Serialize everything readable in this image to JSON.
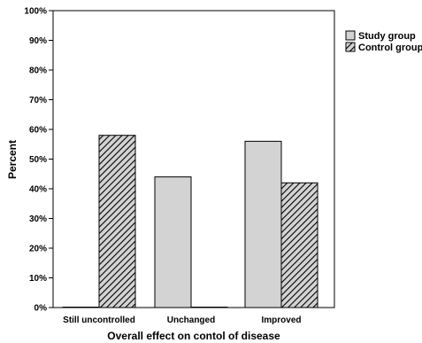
{
  "chart_data": {
    "type": "bar",
    "categories": [
      "Still uncontrolled",
      "Unchanged",
      "Improved"
    ],
    "series": [
      {
        "name": "Study group",
        "values": [
          0,
          44,
          56
        ],
        "color": "#d3d3d3",
        "pattern": "solid"
      },
      {
        "name": "Control group",
        "values": [
          58,
          0,
          42
        ],
        "color": "#d3d3d3",
        "pattern": "hatched"
      }
    ],
    "xlabel": "Overall effect on contol of disease",
    "ylabel": "Percent",
    "ylim": [
      0,
      100
    ],
    "yticks": [
      "0%",
      "10%",
      "20%",
      "30%",
      "40%",
      "50%",
      "60%",
      "70%",
      "80%",
      "90%",
      "100%"
    ],
    "grid": false,
    "legend_position": "top-right"
  }
}
